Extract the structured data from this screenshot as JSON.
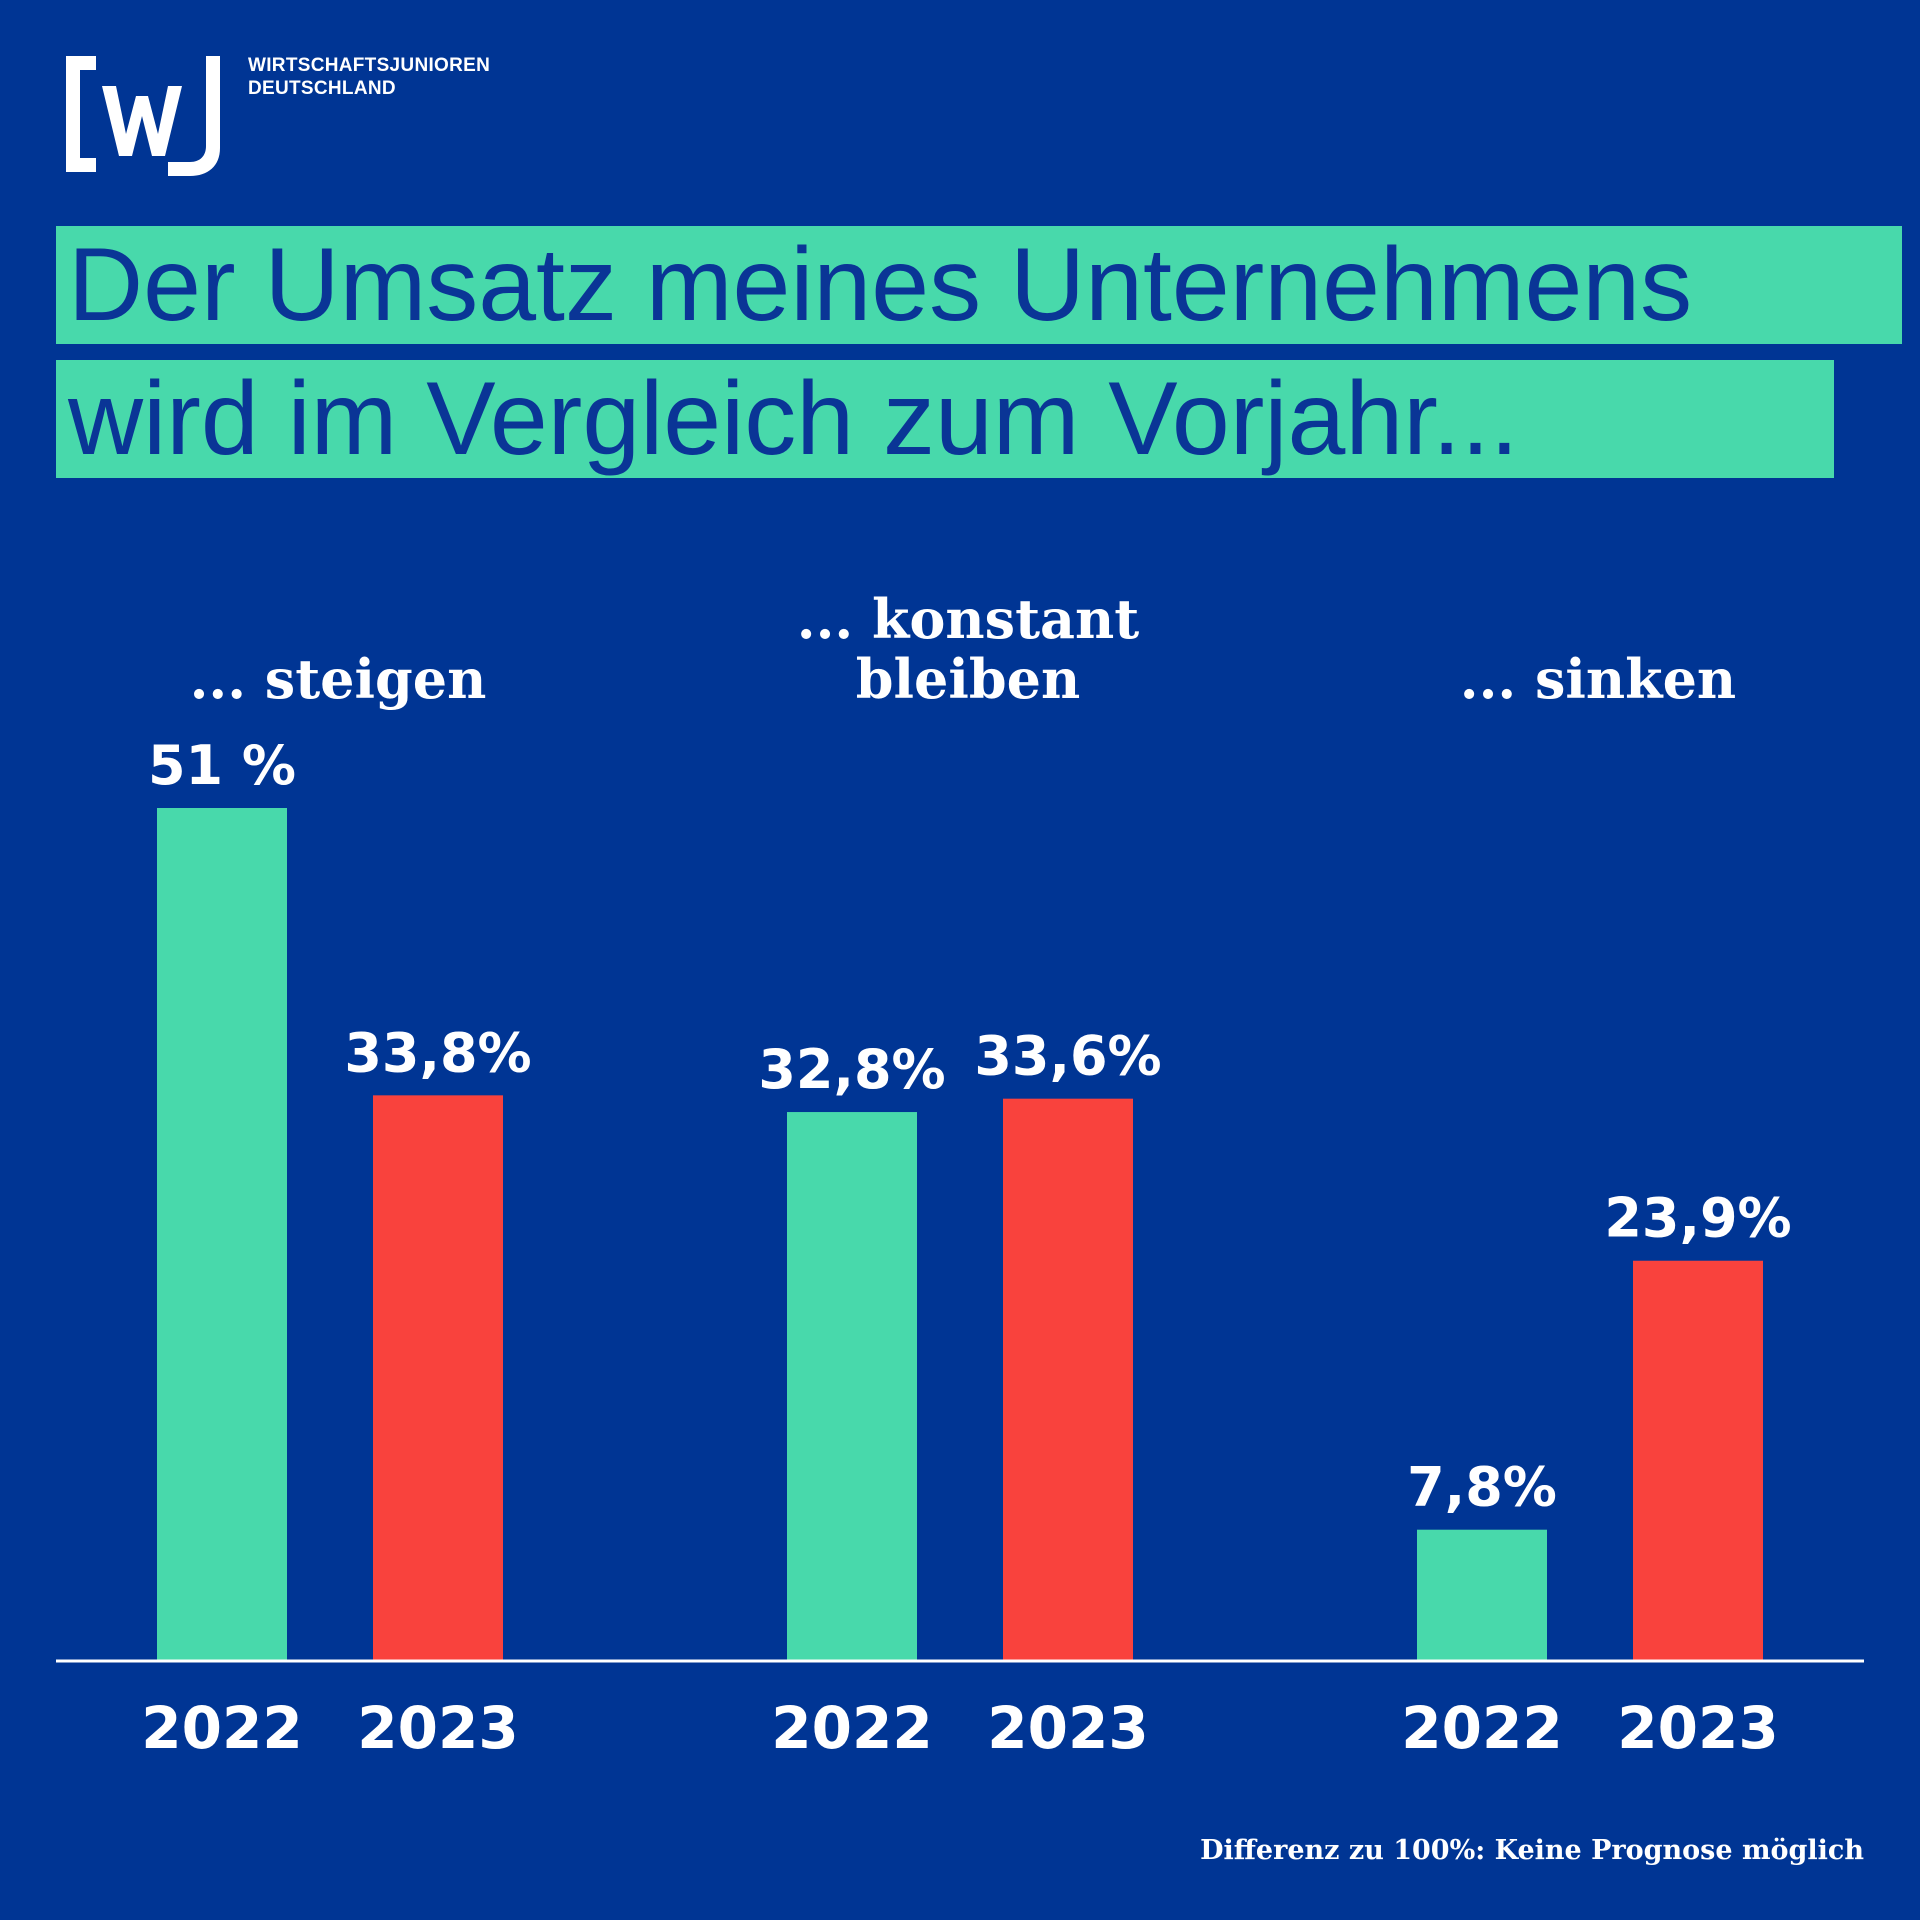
{
  "brand": {
    "logo_letters": "[wJ]",
    "name_line1": "WIRTSCHAFTSJUNIOREN",
    "name_line2": "DEUTSCHLAND",
    "colors": {
      "background": "#003594",
      "accent_green": "#48d9ab",
      "accent_red": "#f9423d",
      "headline_text": "#0a3596",
      "white": "#ffffff"
    }
  },
  "headline": {
    "line1": "Der Umsatz meines Unternehmens",
    "line2": "wird im Vergleich zum Vorjahr..."
  },
  "chart_data": {
    "type": "bar",
    "groups": [
      {
        "label_lines": [
          "... steigen"
        ],
        "values": [
          51,
          33.8
        ],
        "value_labels": [
          "51 %",
          "33,8%"
        ]
      },
      {
        "label_lines": [
          "... konstant",
          "bleiben"
        ],
        "values": [
          32.8,
          33.6
        ],
        "value_labels": [
          "32,8%",
          "33,6%"
        ]
      },
      {
        "label_lines": [
          "... sinken"
        ],
        "values": [
          7.8,
          23.9
        ],
        "value_labels": [
          "7,8%",
          "23,9%"
        ]
      }
    ],
    "series": [
      {
        "name": "2022",
        "color": "#48d9ab"
      },
      {
        "name": "2023",
        "color": "#f9423d"
      }
    ],
    "ylim": [
      0,
      60
    ],
    "grid": false,
    "legend": "none"
  },
  "footnote": "Differenz zu 100%: Keine Prognose möglich"
}
